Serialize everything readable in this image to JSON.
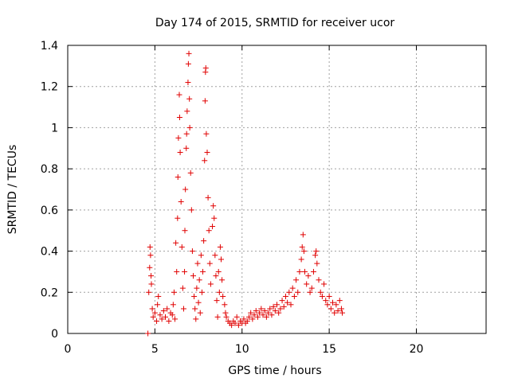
{
  "chart_data": {
    "type": "scatter",
    "title": "Day 174 of 2015, SRMTID for receiver ucor",
    "xlabel": "GPS time / hours",
    "ylabel": "SRMTID / TECUs",
    "xlim": [
      0,
      24
    ],
    "ylim": [
      0,
      1.4
    ],
    "xticks": [
      "0",
      "5",
      "10",
      "15",
      "20"
    ],
    "yticks": [
      "0",
      "0.2",
      "0.4",
      "0.6",
      "0.8",
      "1",
      "1.2",
      "1.4"
    ],
    "grid": true,
    "marker": "+",
    "color": "#e00000",
    "series": [
      {
        "name": "SRMTID",
        "points": [
          [
            4.6,
            0.0
          ],
          [
            4.65,
            0.2
          ],
          [
            4.7,
            0.32
          ],
          [
            4.72,
            0.42
          ],
          [
            4.75,
            0.38
          ],
          [
            4.78,
            0.28
          ],
          [
            4.8,
            0.24
          ],
          [
            4.85,
            0.12
          ],
          [
            4.9,
            0.08
          ],
          [
            5.0,
            0.1
          ],
          [
            5.1,
            0.06
          ],
          [
            5.15,
            0.14
          ],
          [
            5.2,
            0.18
          ],
          [
            5.3,
            0.09
          ],
          [
            5.4,
            0.07
          ],
          [
            5.5,
            0.11
          ],
          [
            5.6,
            0.08
          ],
          [
            5.7,
            0.12
          ],
          [
            5.8,
            0.06
          ],
          [
            5.9,
            0.1
          ],
          [
            6.0,
            0.09
          ],
          [
            6.05,
            0.14
          ],
          [
            6.1,
            0.2
          ],
          [
            6.15,
            0.07
          ],
          [
            6.2,
            0.44
          ],
          [
            6.25,
            0.3
          ],
          [
            6.3,
            0.56
          ],
          [
            6.32,
            0.76
          ],
          [
            6.35,
            0.95
          ],
          [
            6.4,
            1.16
          ],
          [
            6.42,
            1.05
          ],
          [
            6.45,
            0.88
          ],
          [
            6.5,
            0.64
          ],
          [
            6.55,
            0.42
          ],
          [
            6.6,
            0.22
          ],
          [
            6.65,
            0.12
          ],
          [
            6.7,
            0.3
          ],
          [
            6.72,
            0.5
          ],
          [
            6.75,
            0.7
          ],
          [
            6.8,
            0.9
          ],
          [
            6.82,
            0.97
          ],
          [
            6.85,
            1.08
          ],
          [
            6.9,
            1.22
          ],
          [
            6.92,
            1.31
          ],
          [
            6.95,
            1.36
          ],
          [
            6.98,
            1.14
          ],
          [
            7.0,
            1.0
          ],
          [
            7.05,
            0.78
          ],
          [
            7.1,
            0.6
          ],
          [
            7.15,
            0.4
          ],
          [
            7.2,
            0.28
          ],
          [
            7.25,
            0.18
          ],
          [
            7.3,
            0.12
          ],
          [
            7.35,
            0.07
          ],
          [
            7.4,
            0.22
          ],
          [
            7.45,
            0.34
          ],
          [
            7.5,
            0.15
          ],
          [
            7.55,
            0.26
          ],
          [
            7.6,
            0.1
          ],
          [
            7.65,
            0.38
          ],
          [
            7.7,
            0.2
          ],
          [
            7.75,
            0.3
          ],
          [
            7.8,
            0.45
          ],
          [
            7.85,
            0.84
          ],
          [
            7.88,
            1.13
          ],
          [
            7.9,
            1.27
          ],
          [
            7.92,
            1.29
          ],
          [
            7.95,
            0.97
          ],
          [
            8.0,
            0.88
          ],
          [
            8.05,
            0.66
          ],
          [
            8.1,
            0.5
          ],
          [
            8.15,
            0.34
          ],
          [
            8.2,
            0.24
          ],
          [
            8.3,
            0.52
          ],
          [
            8.35,
            0.62
          ],
          [
            8.4,
            0.56
          ],
          [
            8.45,
            0.38
          ],
          [
            8.5,
            0.28
          ],
          [
            8.55,
            0.16
          ],
          [
            8.6,
            0.08
          ],
          [
            8.65,
            0.3
          ],
          [
            8.7,
            0.2
          ],
          [
            8.75,
            0.42
          ],
          [
            8.8,
            0.36
          ],
          [
            8.85,
            0.26
          ],
          [
            8.9,
            0.18
          ],
          [
            9.0,
            0.14
          ],
          [
            9.05,
            0.1
          ],
          [
            9.1,
            0.08
          ],
          [
            9.2,
            0.06
          ],
          [
            9.3,
            0.05
          ],
          [
            9.4,
            0.04
          ],
          [
            9.5,
            0.06
          ],
          [
            9.6,
            0.05
          ],
          [
            9.7,
            0.08
          ],
          [
            9.8,
            0.04
          ],
          [
            9.9,
            0.06
          ],
          [
            10.0,
            0.05
          ],
          [
            10.1,
            0.07
          ],
          [
            10.2,
            0.05
          ],
          [
            10.3,
            0.06
          ],
          [
            10.4,
            0.08
          ],
          [
            10.5,
            0.1
          ],
          [
            10.6,
            0.07
          ],
          [
            10.7,
            0.09
          ],
          [
            10.8,
            0.11
          ],
          [
            10.9,
            0.08
          ],
          [
            11.0,
            0.1
          ],
          [
            11.1,
            0.12
          ],
          [
            11.2,
            0.09
          ],
          [
            11.3,
            0.11
          ],
          [
            11.4,
            0.08
          ],
          [
            11.5,
            0.1
          ],
          [
            11.6,
            0.12
          ],
          [
            11.7,
            0.09
          ],
          [
            11.8,
            0.13
          ],
          [
            11.9,
            0.11
          ],
          [
            12.0,
            0.14
          ],
          [
            12.1,
            0.1
          ],
          [
            12.2,
            0.12
          ],
          [
            12.3,
            0.16
          ],
          [
            12.4,
            0.13
          ],
          [
            12.5,
            0.18
          ],
          [
            12.6,
            0.15
          ],
          [
            12.7,
            0.2
          ],
          [
            12.8,
            0.14
          ],
          [
            12.9,
            0.22
          ],
          [
            13.0,
            0.18
          ],
          [
            13.1,
            0.26
          ],
          [
            13.2,
            0.2
          ],
          [
            13.3,
            0.3
          ],
          [
            13.4,
            0.36
          ],
          [
            13.45,
            0.42
          ],
          [
            13.5,
            0.48
          ],
          [
            13.55,
            0.4
          ],
          [
            13.6,
            0.3
          ],
          [
            13.7,
            0.24
          ],
          [
            13.8,
            0.28
          ],
          [
            13.9,
            0.2
          ],
          [
            14.0,
            0.22
          ],
          [
            14.1,
            0.3
          ],
          [
            14.2,
            0.38
          ],
          [
            14.25,
            0.4
          ],
          [
            14.3,
            0.34
          ],
          [
            14.4,
            0.26
          ],
          [
            14.5,
            0.2
          ],
          [
            14.6,
            0.18
          ],
          [
            14.7,
            0.24
          ],
          [
            14.8,
            0.16
          ],
          [
            14.9,
            0.14
          ],
          [
            15.0,
            0.18
          ],
          [
            15.1,
            0.12
          ],
          [
            15.2,
            0.15
          ],
          [
            15.3,
            0.1
          ],
          [
            15.4,
            0.14
          ],
          [
            15.5,
            0.11
          ],
          [
            15.6,
            0.16
          ],
          [
            15.7,
            0.12
          ],
          [
            15.75,
            0.1
          ]
        ]
      }
    ]
  }
}
